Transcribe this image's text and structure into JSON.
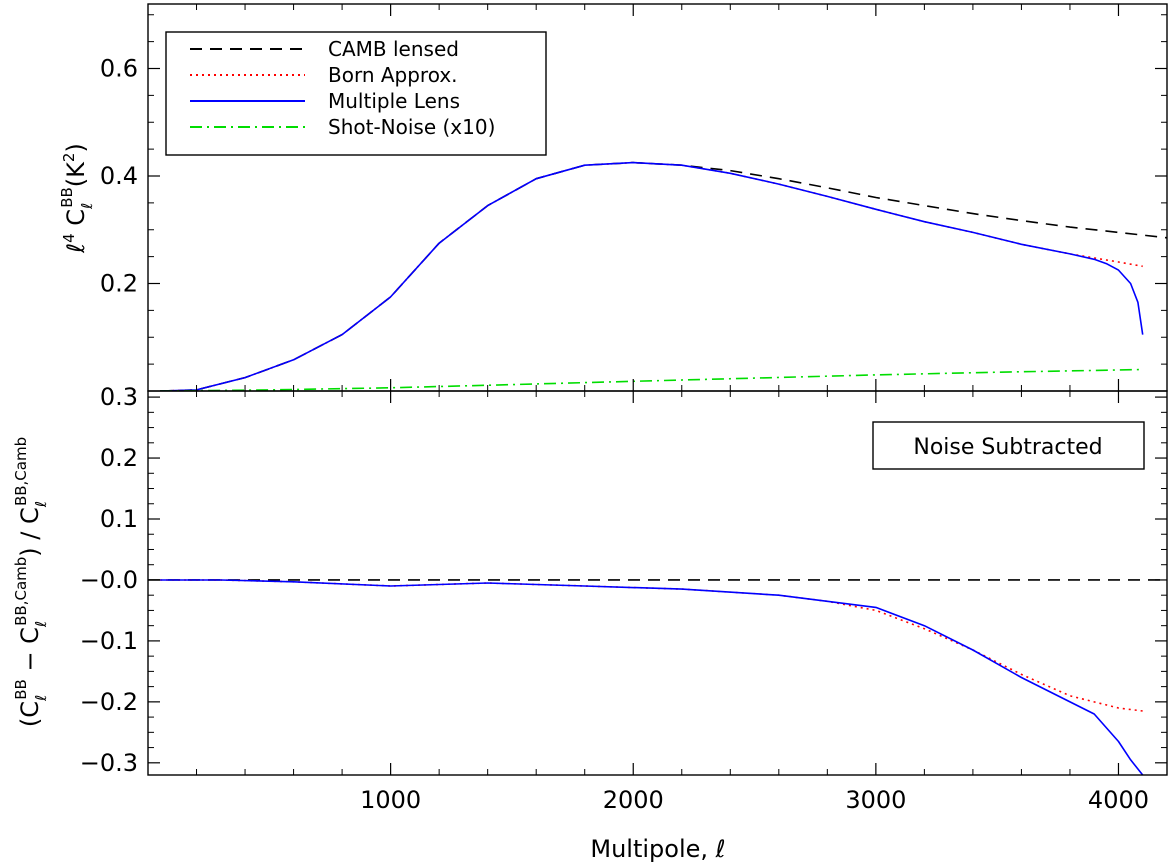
{
  "chart_data": [
    {
      "type": "line",
      "panel": "top",
      "xlabel": "",
      "ylabel": "ℓ⁴ C_ℓ^BB (K²)",
      "xlim": [
        0,
        4200
      ],
      "ylim": [
        0,
        0.72
      ],
      "xticks": [
        1000,
        2000,
        3000,
        4000
      ],
      "yticks": [
        0.2,
        0.4,
        0.6
      ],
      "ytick_labels": [
        "0.2",
        "0.4",
        "0.6"
      ],
      "legend": {
        "position": "top-left"
      },
      "series": [
        {
          "name": "CAMB lensed",
          "style": "dashed",
          "color": "#000000",
          "x": [
            50,
            200,
            400,
            600,
            800,
            1000,
            1200,
            1400,
            1600,
            1800,
            2000,
            2200,
            2400,
            2600,
            2800,
            3000,
            3200,
            3400,
            3600,
            3800,
            4000,
            4200
          ],
          "y": [
            0.0,
            0.002,
            0.025,
            0.058,
            0.105,
            0.175,
            0.275,
            0.345,
            0.395,
            0.42,
            0.425,
            0.42,
            0.41,
            0.395,
            0.378,
            0.36,
            0.345,
            0.33,
            0.317,
            0.305,
            0.295,
            0.285
          ]
        },
        {
          "name": "Born Approx.",
          "style": "dotted",
          "color": "#ff0000",
          "x": [
            50,
            200,
            400,
            600,
            800,
            1000,
            1200,
            1400,
            1600,
            1800,
            2000,
            2200,
            2400,
            2600,
            2800,
            3000,
            3200,
            3400,
            3600,
            3800,
            4000,
            4100
          ],
          "y": [
            0.0,
            0.002,
            0.025,
            0.058,
            0.105,
            0.175,
            0.275,
            0.345,
            0.395,
            0.42,
            0.425,
            0.42,
            0.405,
            0.385,
            0.362,
            0.338,
            0.315,
            0.295,
            0.273,
            0.255,
            0.24,
            0.232
          ]
        },
        {
          "name": "Multiple Lens",
          "style": "solid",
          "color": "#0000ff",
          "x": [
            50,
            200,
            400,
            600,
            800,
            1000,
            1200,
            1400,
            1600,
            1800,
            2000,
            2200,
            2400,
            2600,
            2800,
            3000,
            3200,
            3400,
            3600,
            3800,
            3900,
            3950,
            4000,
            4050,
            4080,
            4100
          ],
          "y": [
            0.0,
            0.002,
            0.025,
            0.058,
            0.105,
            0.175,
            0.275,
            0.345,
            0.395,
            0.42,
            0.425,
            0.42,
            0.405,
            0.385,
            0.362,
            0.338,
            0.315,
            0.295,
            0.273,
            0.255,
            0.245,
            0.237,
            0.225,
            0.2,
            0.165,
            0.105
          ]
        },
        {
          "name": "Shot-Noise (x10)",
          "style": "dashdot",
          "color": "#00dd00",
          "x": [
            50,
            500,
            1000,
            1500,
            2000,
            2500,
            3000,
            3500,
            4000,
            4100
          ],
          "y": [
            0.0,
            0.002,
            0.006,
            0.012,
            0.018,
            0.024,
            0.03,
            0.035,
            0.039,
            0.04
          ]
        }
      ]
    },
    {
      "type": "line",
      "panel": "bottom",
      "annotation": "Noise Subtracted",
      "xlabel": "Multipole, ℓ",
      "ylabel": "(C_ℓ^BB − C_ℓ^BB,Camb) / C_ℓ^BB,Camb",
      "xlim": [
        0,
        4200
      ],
      "ylim": [
        -0.32,
        0.31
      ],
      "xticks": [
        1000,
        2000,
        3000,
        4000
      ],
      "xtick_labels": [
        "1000",
        "2000",
        "3000",
        "4000"
      ],
      "yticks": [
        -0.3,
        -0.2,
        -0.1,
        0.0,
        0.1,
        0.2,
        0.3
      ],
      "ytick_labels": [
        "−0.3",
        "−0.2",
        "−0.1",
        "−0.0",
        "0.1",
        "0.2",
        "0.3"
      ],
      "reference_line": {
        "y": 0.0,
        "style": "dashed",
        "color": "#000000"
      },
      "series": [
        {
          "style": "dotted",
          "color": "#ff0000",
          "x": [
            50,
            300,
            600,
            1000,
            1400,
            1800,
            2200,
            2600,
            2800,
            3000,
            3200,
            3400,
            3600,
            3800,
            4000,
            4100
          ],
          "y": [
            0.0,
            0.0,
            -0.003,
            -0.01,
            -0.005,
            -0.01,
            -0.015,
            -0.025,
            -0.035,
            -0.05,
            -0.08,
            -0.115,
            -0.155,
            -0.19,
            -0.21,
            -0.215
          ]
        },
        {
          "style": "solid",
          "color": "#0000ff",
          "x": [
            50,
            300,
            600,
            1000,
            1400,
            1800,
            2200,
            2600,
            2800,
            3000,
            3200,
            3400,
            3600,
            3800,
            3900,
            4000,
            4050,
            4100
          ],
          "y": [
            0.0,
            0.0,
            -0.003,
            -0.01,
            -0.005,
            -0.01,
            -0.015,
            -0.025,
            -0.035,
            -0.045,
            -0.075,
            -0.115,
            -0.16,
            -0.2,
            -0.22,
            -0.265,
            -0.295,
            -0.32
          ]
        }
      ]
    }
  ]
}
